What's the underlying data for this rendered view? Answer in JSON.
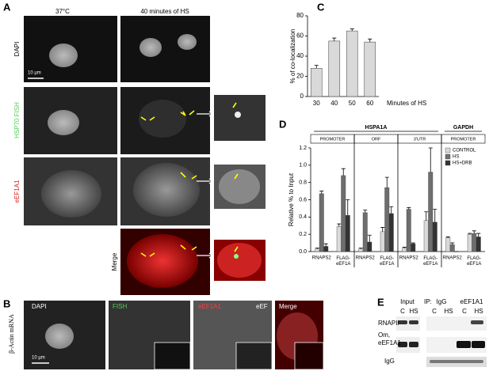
{
  "panel_labels": [
    "A",
    "B",
    "C",
    "D",
    "E"
  ],
  "panel_a": {
    "columns": [
      "37°C",
      "40 minutes of HS"
    ],
    "rows": [
      "DAPI",
      "HSP70 FISH",
      "eEF1A1",
      "Merge"
    ],
    "scale_bar": "10 µm"
  },
  "panel_b": {
    "side_label": "β-Actin mRNA",
    "channels": [
      "DAPI",
      "FISH",
      "eEF1A1",
      "Merge"
    ],
    "extra_label": "eEF",
    "scale_bar": "10 µm"
  },
  "panel_e": {
    "input": "Input",
    "ip": "IP:",
    "groups": [
      "IgG",
      "eEF1A1"
    ],
    "lanes": [
      "C",
      "HS",
      "C",
      "HS",
      "C",
      "HS"
    ],
    "rows": [
      "RNAPII",
      "Om,",
      "eEF1A1",
      "IgG"
    ]
  },
  "chart_data": [
    {
      "type": "bar",
      "ylabel": "% of co-localization",
      "xlabel": "Minutes of HS",
      "categories": [
        "30",
        "40",
        "50",
        "60"
      ],
      "values": [
        28,
        55,
        65,
        54
      ],
      "errors": [
        3,
        3,
        2,
        3
      ],
      "color": "#d9d9d9",
      "ylim": [
        0,
        80
      ],
      "yticks": [
        0,
        20,
        40,
        60,
        80
      ]
    },
    {
      "type": "grouped_bar",
      "ylabel": "Relative % to Input",
      "groups": [
        "HSPA1A",
        "GAPDH"
      ],
      "regions": [
        "PROMOTER",
        "ORF",
        "3'UTR",
        "PROMOTER"
      ],
      "categories": [
        "RNAPS2",
        "FLAG-eEF1A",
        "RNAPS2",
        "FLAG-eEF1A",
        "RNAPS2",
        "FLAG-eEF1A",
        "RNAPS2",
        "FLAG-eEF1A"
      ],
      "series": [
        {
          "name": "CONTROL",
          "color": "#d9d9d9",
          "values": [
            0.03,
            0.29,
            0.03,
            0.23,
            0.04,
            0.36,
            0.16,
            0.2
          ],
          "errors": [
            0.01,
            0.03,
            0.01,
            0.05,
            0.01,
            0.1,
            0.01,
            0.01
          ]
        },
        {
          "name": "HS",
          "color": "#6e6e6e",
          "values": [
            0.67,
            0.88,
            0.45,
            0.74,
            0.49,
            0.92,
            0.08,
            0.21
          ],
          "errors": [
            0.03,
            0.08,
            0.03,
            0.12,
            0.02,
            0.28,
            0.02,
            0.03
          ]
        },
        {
          "name": "HS+DRB",
          "color": "#333333",
          "values": [
            0.06,
            0.42,
            0.11,
            0.44,
            0.09,
            0.34,
            0.0,
            0.17
          ],
          "errors": [
            0.03,
            0.18,
            0.08,
            0.08,
            0.01,
            0.15,
            0.0,
            0.04
          ]
        }
      ],
      "ylim": [
        0,
        1.2
      ],
      "yticks": [
        {
          "value": 0,
          "label": "0.0"
        },
        0.2,
        0.4,
        0.6,
        0.8,
        {
          "value": 1,
          "label": "1.0"
        },
        1.2
      ],
      "legend": "top-right"
    }
  ]
}
